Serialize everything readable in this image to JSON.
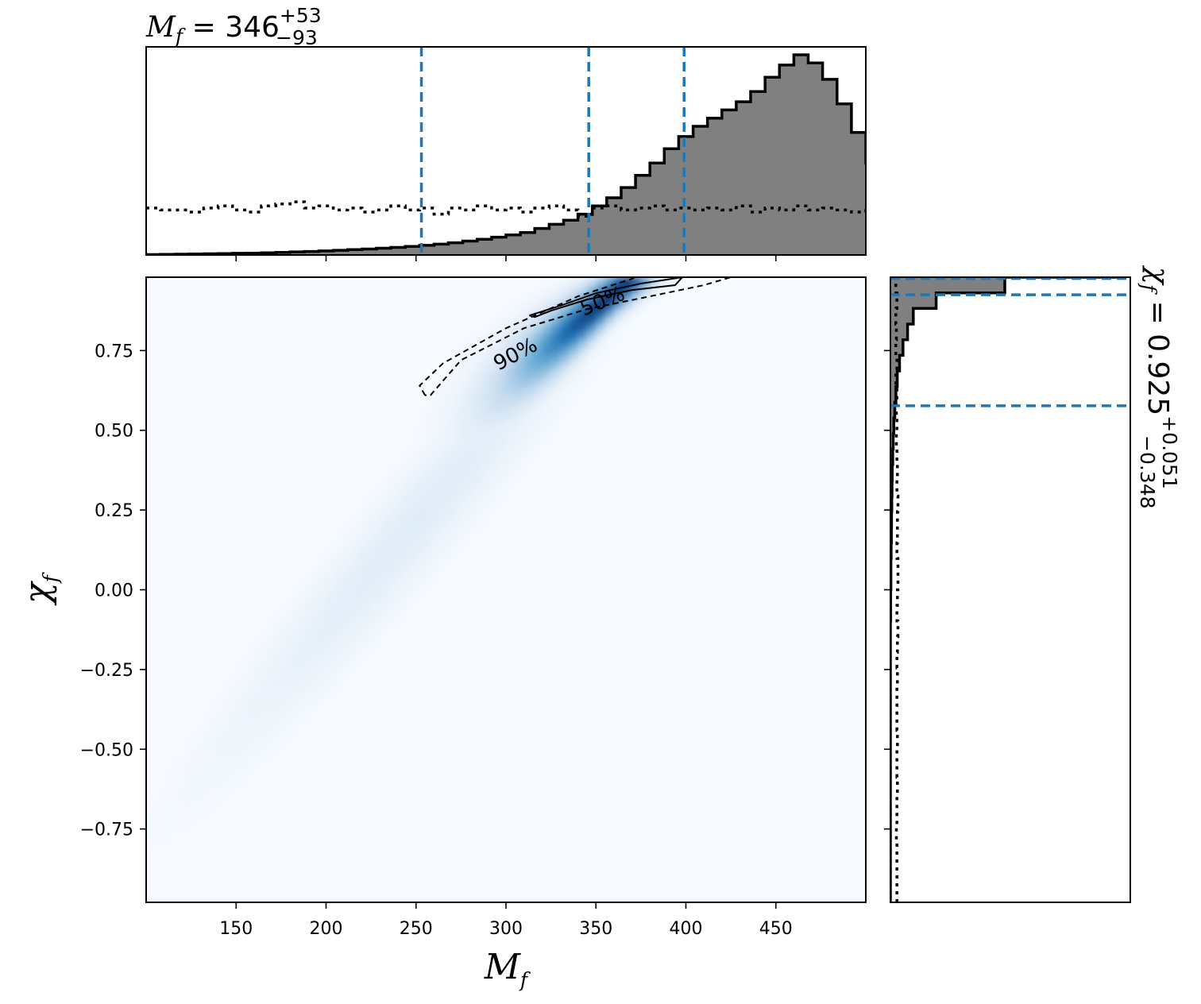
{
  "titles": {
    "top_symbol": "M",
    "top_subscript": "f",
    "top_eq": " = 346",
    "top_plus": "+53",
    "top_minus": "−93",
    "right_symbol": "χ",
    "right_subscript": "f",
    "right_eq": " = 0.925",
    "right_plus": "+0.051",
    "right_minus": "−0.348"
  },
  "chart_data": {
    "type": "heatmap",
    "description_kind": "corner plot: 2D density with 1D marginal histograms",
    "xlabel": "M_f",
    "ylabel": "χ_f",
    "xlabel_main": "M",
    "xlabel_sub": "f",
    "ylabel_main": "χ",
    "ylabel_sub": "f",
    "xlim": [
      100,
      500
    ],
    "ylim": [
      -0.98,
      0.98
    ],
    "x_ticks": [
      150,
      200,
      250,
      300,
      350,
      400,
      450
    ],
    "y_ticks": [
      0.75,
      0.5,
      0.25,
      0.0,
      -0.25,
      -0.5,
      -0.75
    ],
    "x_tick_labels": [
      "150",
      "200",
      "250",
      "300",
      "350",
      "400",
      "450"
    ],
    "y_tick_labels": [
      "0.75",
      "0.50",
      "0.25",
      "0.00",
      "−0.25",
      "−0.50",
      "−0.75"
    ],
    "colormap": "Blues",
    "density_peak": {
      "x": 360,
      "y": 0.93
    },
    "contours": [
      {
        "label": "50%",
        "style": "solid",
        "path": [
          [
            313,
            0.86
          ],
          [
            330,
            0.89
          ],
          [
            350,
            0.93
          ],
          [
            375,
            0.96
          ],
          [
            398,
            0.98
          ],
          [
            394,
            0.955
          ],
          [
            370,
            0.94
          ],
          [
            345,
            0.91
          ],
          [
            325,
            0.875
          ],
          [
            316,
            0.855
          ],
          [
            313,
            0.86
          ]
        ]
      },
      {
        "label": "90%",
        "style": "dashed",
        "path": [
          [
            255,
            0.61
          ],
          [
            252,
            0.64
          ],
          [
            265,
            0.71
          ],
          [
            300,
            0.82
          ],
          [
            340,
            0.92
          ],
          [
            370,
            0.975
          ],
          [
            375,
            0.985
          ],
          [
            428,
            0.985
          ],
          [
            410,
            0.955
          ],
          [
            380,
            0.92
          ],
          [
            345,
            0.88
          ],
          [
            310,
            0.82
          ],
          [
            275,
            0.72
          ],
          [
            258,
            0.61
          ],
          [
            255,
            0.61
          ]
        ]
      }
    ],
    "marginal_x": {
      "histogram_label": "posterior",
      "bin_edges_start": 100,
      "bin_width": 8,
      "posterior": [
        0.002,
        0.003,
        0.004,
        0.005,
        0.006,
        0.007,
        0.008,
        0.009,
        0.011,
        0.013,
        0.015,
        0.017,
        0.02,
        0.023,
        0.026,
        0.029,
        0.033,
        0.037,
        0.042,
        0.047,
        0.053,
        0.06,
        0.068,
        0.077,
        0.087,
        0.098,
        0.11,
        0.13,
        0.15,
        0.17,
        0.2,
        0.24,
        0.28,
        0.33,
        0.39,
        0.45,
        0.52,
        0.58,
        0.63,
        0.67,
        0.71,
        0.75,
        0.8,
        0.87,
        0.93,
        0.98,
        0.94,
        0.86,
        0.74,
        0.6,
        0.45,
        0.26,
        0.14,
        0.09,
        0.05,
        0.02,
        0.01,
        0.006,
        0.003,
        0.002,
        0.001,
        0.001,
        0.001,
        0.0,
        0.0,
        0.0,
        0.0,
        0.0,
        0.0,
        0.0
      ],
      "prior": [
        0.23,
        0.22,
        0.22,
        0.21,
        0.23,
        0.24,
        0.22,
        0.21,
        0.24,
        0.25,
        0.26,
        0.23,
        0.24,
        0.22,
        0.23,
        0.21,
        0.22,
        0.24,
        0.22,
        0.23,
        0.2,
        0.23,
        0.22,
        0.24,
        0.22,
        0.23,
        0.21,
        0.23,
        0.24,
        0.22,
        0.19,
        0.23,
        0.24,
        0.22,
        0.23,
        0.24,
        0.22,
        0.23,
        0.22,
        0.23,
        0.22,
        0.24,
        0.21,
        0.23,
        0.22,
        0.24,
        0.22,
        0.23,
        0.22,
        0.21,
        0.23,
        0.24,
        0.23,
        0.22,
        0.25,
        0.24,
        0.23,
        0.21,
        0.23,
        0.24,
        0.25,
        0.24,
        0.23,
        0.22,
        0.24,
        0.23,
        0.22,
        0.23,
        0.24,
        0.23
      ],
      "quantile_lines": [
        253,
        346,
        399
      ]
    },
    "marginal_y": {
      "histogram_label": "posterior",
      "bin_edges_start": -0.98,
      "bin_width": 0.049,
      "posterior": [
        0.0,
        0.0,
        0.0,
        0.0,
        0.0,
        0.0,
        0.0,
        0.0,
        0.0,
        0.0,
        0.0,
        0.0,
        0.0,
        0.0,
        0.0,
        0.0,
        0.0,
        0.0,
        0.001,
        0.001,
        0.002,
        0.002,
        0.003,
        0.004,
        0.005,
        0.006,
        0.007,
        0.008,
        0.01,
        0.012,
        0.015,
        0.019,
        0.024,
        0.03,
        0.04,
        0.055,
        0.075,
        0.1,
        0.2,
        0.5,
        1.0
      ],
      "prior": [
        0.06,
        0.06,
        0.06,
        0.06,
        0.055,
        0.06,
        0.06,
        0.065,
        0.06,
        0.06,
        0.065,
        0.06,
        0.06,
        0.06,
        0.065,
        0.06,
        0.065,
        0.07,
        0.06,
        0.065,
        0.07,
        0.07,
        0.06,
        0.065,
        0.065,
        0.07,
        0.06,
        0.065,
        0.06,
        0.055,
        0.06,
        0.055,
        0.06,
        0.05,
        0.06,
        0.05,
        0.055,
        0.05,
        0.06,
        0.05,
        0.055
      ],
      "quantile_lines": [
        0.577,
        0.925,
        0.976
      ]
    }
  }
}
